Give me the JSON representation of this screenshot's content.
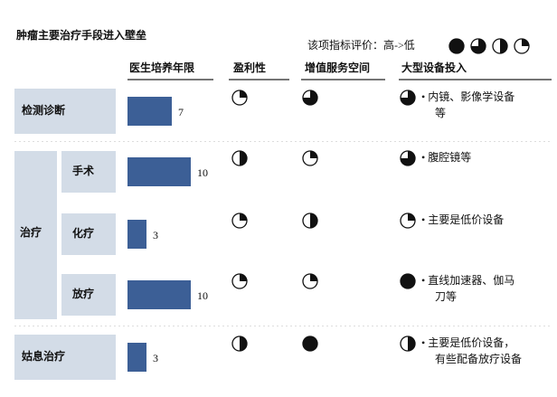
{
  "title": "肿瘤主要治疗手段进入壁垒",
  "legend": {
    "label": "该项指标评价：高->低",
    "levels": [
      100,
      75,
      50,
      25
    ]
  },
  "columns": [
    "医生培养年限",
    "盈利性",
    "增值服务空间",
    "大型设备投入"
  ],
  "sections": [
    {
      "label": "检测诊断",
      "rows": [
        {
          "years": 7,
          "profit": 25,
          "value_added": 75,
          "equipment": 75,
          "equipment_note": [
            "• 内镜、影像学设备",
            "等"
          ]
        }
      ]
    },
    {
      "label": "治疗",
      "rows": [
        {
          "label": "手术",
          "years": 10,
          "profit": 50,
          "value_added": 25,
          "equipment": 75,
          "equipment_note": [
            "• 腹腔镜等"
          ]
        },
        {
          "label": "化疗",
          "years": 3,
          "profit": 25,
          "value_added": 50,
          "equipment": 25,
          "equipment_note": [
            "• 主要是低价设备"
          ]
        },
        {
          "label": "放疗",
          "years": 10,
          "profit": 25,
          "value_added": 25,
          "equipment": 100,
          "equipment_note": [
            "• 直线加速器、伽马",
            "刀等"
          ]
        }
      ]
    },
    {
      "label": "姑息治疗",
      "rows": [
        {
          "years": 3,
          "profit": 50,
          "value_added": 100,
          "equipment": 50,
          "equipment_note": [
            "• 主要是低价设备，",
            "有些配备放疗设备"
          ]
        }
      ]
    }
  ]
}
